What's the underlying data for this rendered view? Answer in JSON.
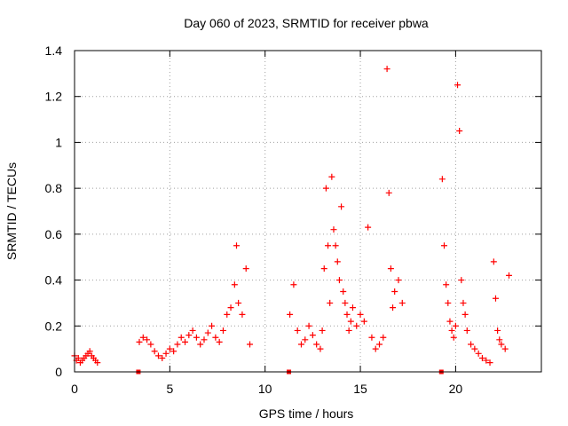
{
  "chart_data": {
    "type": "scatter",
    "title": "Day 060 of 2023, SRMTID for receiver pbwa",
    "xlabel": "GPS time / hours",
    "ylabel": "SRMTID / TECUs",
    "xlim": [
      0,
      24.5
    ],
    "ylim": [
      0,
      1.4
    ],
    "x_ticks": [
      0,
      5,
      10,
      15,
      20
    ],
    "x_tick_labels": [
      "0",
      "5",
      "10",
      "15",
      "20"
    ],
    "y_ticks": [
      0,
      0.2,
      0.4,
      0.6,
      0.8,
      1,
      1.2,
      1.4
    ],
    "y_tick_labels": [
      "0",
      "0.2",
      "0.4",
      "0.6",
      "0.8",
      "1",
      "1.2",
      "1.4"
    ],
    "grid": true,
    "marker": "+",
    "color": "#ff0000",
    "segments": [
      {
        "x": [
          0.0,
          0.1,
          0.2,
          0.3,
          0.4,
          0.5,
          0.6,
          0.7,
          0.8,
          0.9,
          1.0,
          1.1,
          1.2
        ],
        "y": [
          0.07,
          0.05,
          0.06,
          0.04,
          0.05,
          0.06,
          0.07,
          0.08,
          0.09,
          0.07,
          0.06,
          0.05,
          0.04
        ]
      },
      {
        "x": [
          3.4,
          3.6,
          3.8,
          4.0,
          4.2,
          4.4,
          4.6,
          4.8,
          5.0,
          5.2,
          5.4,
          5.6,
          5.8,
          6.0,
          6.2,
          6.4,
          6.6,
          6.8,
          7.0,
          7.2,
          7.4,
          7.6,
          7.8,
          8.0,
          8.2,
          8.4,
          8.5,
          8.6,
          8.8,
          9.0,
          9.2
        ],
        "y": [
          0.13,
          0.15,
          0.14,
          0.12,
          0.09,
          0.07,
          0.06,
          0.08,
          0.1,
          0.09,
          0.12,
          0.15,
          0.13,
          0.16,
          0.18,
          0.15,
          0.12,
          0.14,
          0.17,
          0.2,
          0.15,
          0.13,
          0.18,
          0.25,
          0.28,
          0.38,
          0.55,
          0.3,
          0.25,
          0.45,
          0.12
        ]
      },
      {
        "x": [
          11.3,
          11.5,
          11.7,
          11.9,
          12.1,
          12.3,
          12.5,
          12.7,
          12.9,
          13.0,
          13.1,
          13.2,
          13.3,
          13.4,
          13.5,
          13.6,
          13.7,
          13.8,
          13.9,
          14.0,
          14.1,
          14.2,
          14.3,
          14.4,
          14.5,
          14.6,
          14.8,
          15.0,
          15.2,
          15.4,
          15.6,
          15.8,
          16.0,
          16.2,
          16.4,
          16.5,
          16.6,
          16.7,
          16.8,
          17.0,
          17.2
        ],
        "y": [
          0.25,
          0.38,
          0.18,
          0.12,
          0.14,
          0.2,
          0.16,
          0.12,
          0.1,
          0.18,
          0.45,
          0.8,
          0.55,
          0.3,
          0.85,
          0.62,
          0.55,
          0.48,
          0.4,
          0.72,
          0.35,
          0.3,
          0.25,
          0.18,
          0.22,
          0.28,
          0.2,
          0.25,
          0.22,
          0.63,
          0.15,
          0.1,
          0.12,
          0.15,
          1.32,
          0.78,
          0.45,
          0.28,
          0.35,
          0.4,
          0.3
        ]
      },
      {
        "x": [
          19.3,
          19.4,
          19.5,
          19.6,
          19.7,
          19.8,
          19.9,
          20.0,
          20.1,
          20.2,
          20.3,
          20.4,
          20.5,
          20.6,
          20.8,
          21.0,
          21.2,
          21.4,
          21.6,
          21.8,
          22.0,
          22.1,
          22.2,
          22.3,
          22.4,
          22.6,
          22.8
        ],
        "y": [
          0.84,
          0.55,
          0.38,
          0.3,
          0.22,
          0.18,
          0.15,
          0.2,
          1.25,
          1.05,
          0.4,
          0.3,
          0.25,
          0.18,
          0.12,
          0.1,
          0.08,
          0.06,
          0.05,
          0.04,
          0.48,
          0.32,
          0.18,
          0.14,
          0.12,
          0.1,
          0.42
        ]
      }
    ],
    "gap_markers_x": [
      3.35,
      11.25,
      19.25
    ]
  }
}
